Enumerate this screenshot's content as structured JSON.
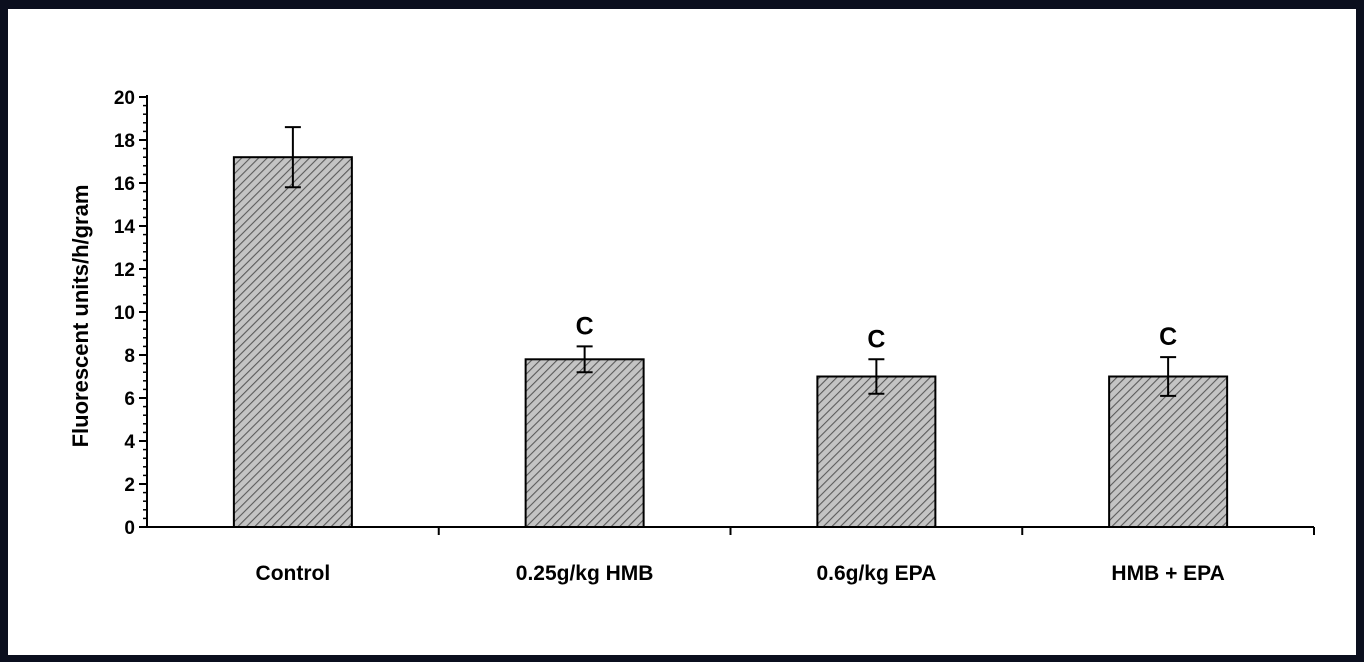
{
  "chart_data": {
    "type": "bar",
    "title": "",
    "xlabel": "",
    "ylabel": "Fluorescent units/h/gram",
    "ylim": [
      0,
      20
    ],
    "yticks": [
      0,
      2,
      4,
      6,
      8,
      10,
      12,
      14,
      16,
      18,
      20
    ],
    "categories": [
      "Control",
      "0.25g/kg HMB",
      "0.6g/kg EPA",
      "HMB + EPA"
    ],
    "values": [
      17.2,
      7.8,
      7.0,
      7.0
    ],
    "error": [
      1.4,
      0.6,
      0.8,
      0.9
    ],
    "annotations": [
      "",
      "C",
      "C",
      "C"
    ],
    "grid": false,
    "bar_fill": "hatched gray",
    "colors": {
      "bar": "#b8b8b8",
      "hatch": "#5a5a5a",
      "axis": "#000000",
      "background": "#ffffff",
      "frame": "#0b0f1e"
    }
  }
}
